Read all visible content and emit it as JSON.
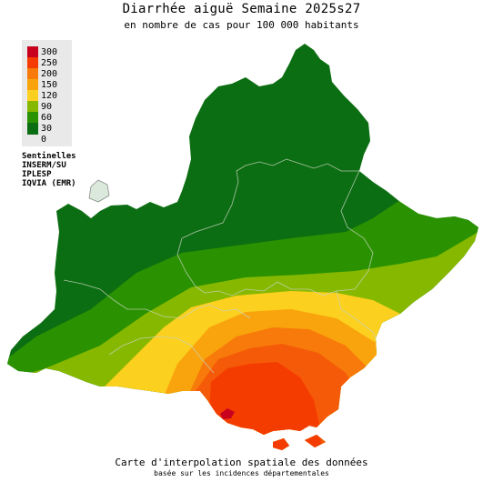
{
  "title": "Diarrhée aiguë Semaine 2025s27",
  "subtitle": "en nombre de cas pour 100 000 habitants",
  "legend": [
    {
      "label": "300",
      "color": "#c8001e"
    },
    {
      "label": "250",
      "color": "#f53c00"
    },
    {
      "label": "200",
      "color": "#f77a0a"
    },
    {
      "label": "150",
      "color": "#f9a40c"
    },
    {
      "label": "120",
      "color": "#fcd01e"
    },
    {
      "label": "90",
      "color": "#87b800"
    },
    {
      "label": "60",
      "color": "#2a9200"
    },
    {
      "label": "30",
      "color": "#0c6e12"
    },
    {
      "label": "0",
      "color": ""
    }
  ],
  "sources": [
    "Sentinelles",
    "INSERM/SU",
    "IPLESP",
    "IQVIA (EMR)"
  ],
  "footer": {
    "line1": "Carte d'interpolation spatiale des données",
    "line2": "basée sur les incidences départementales"
  }
}
